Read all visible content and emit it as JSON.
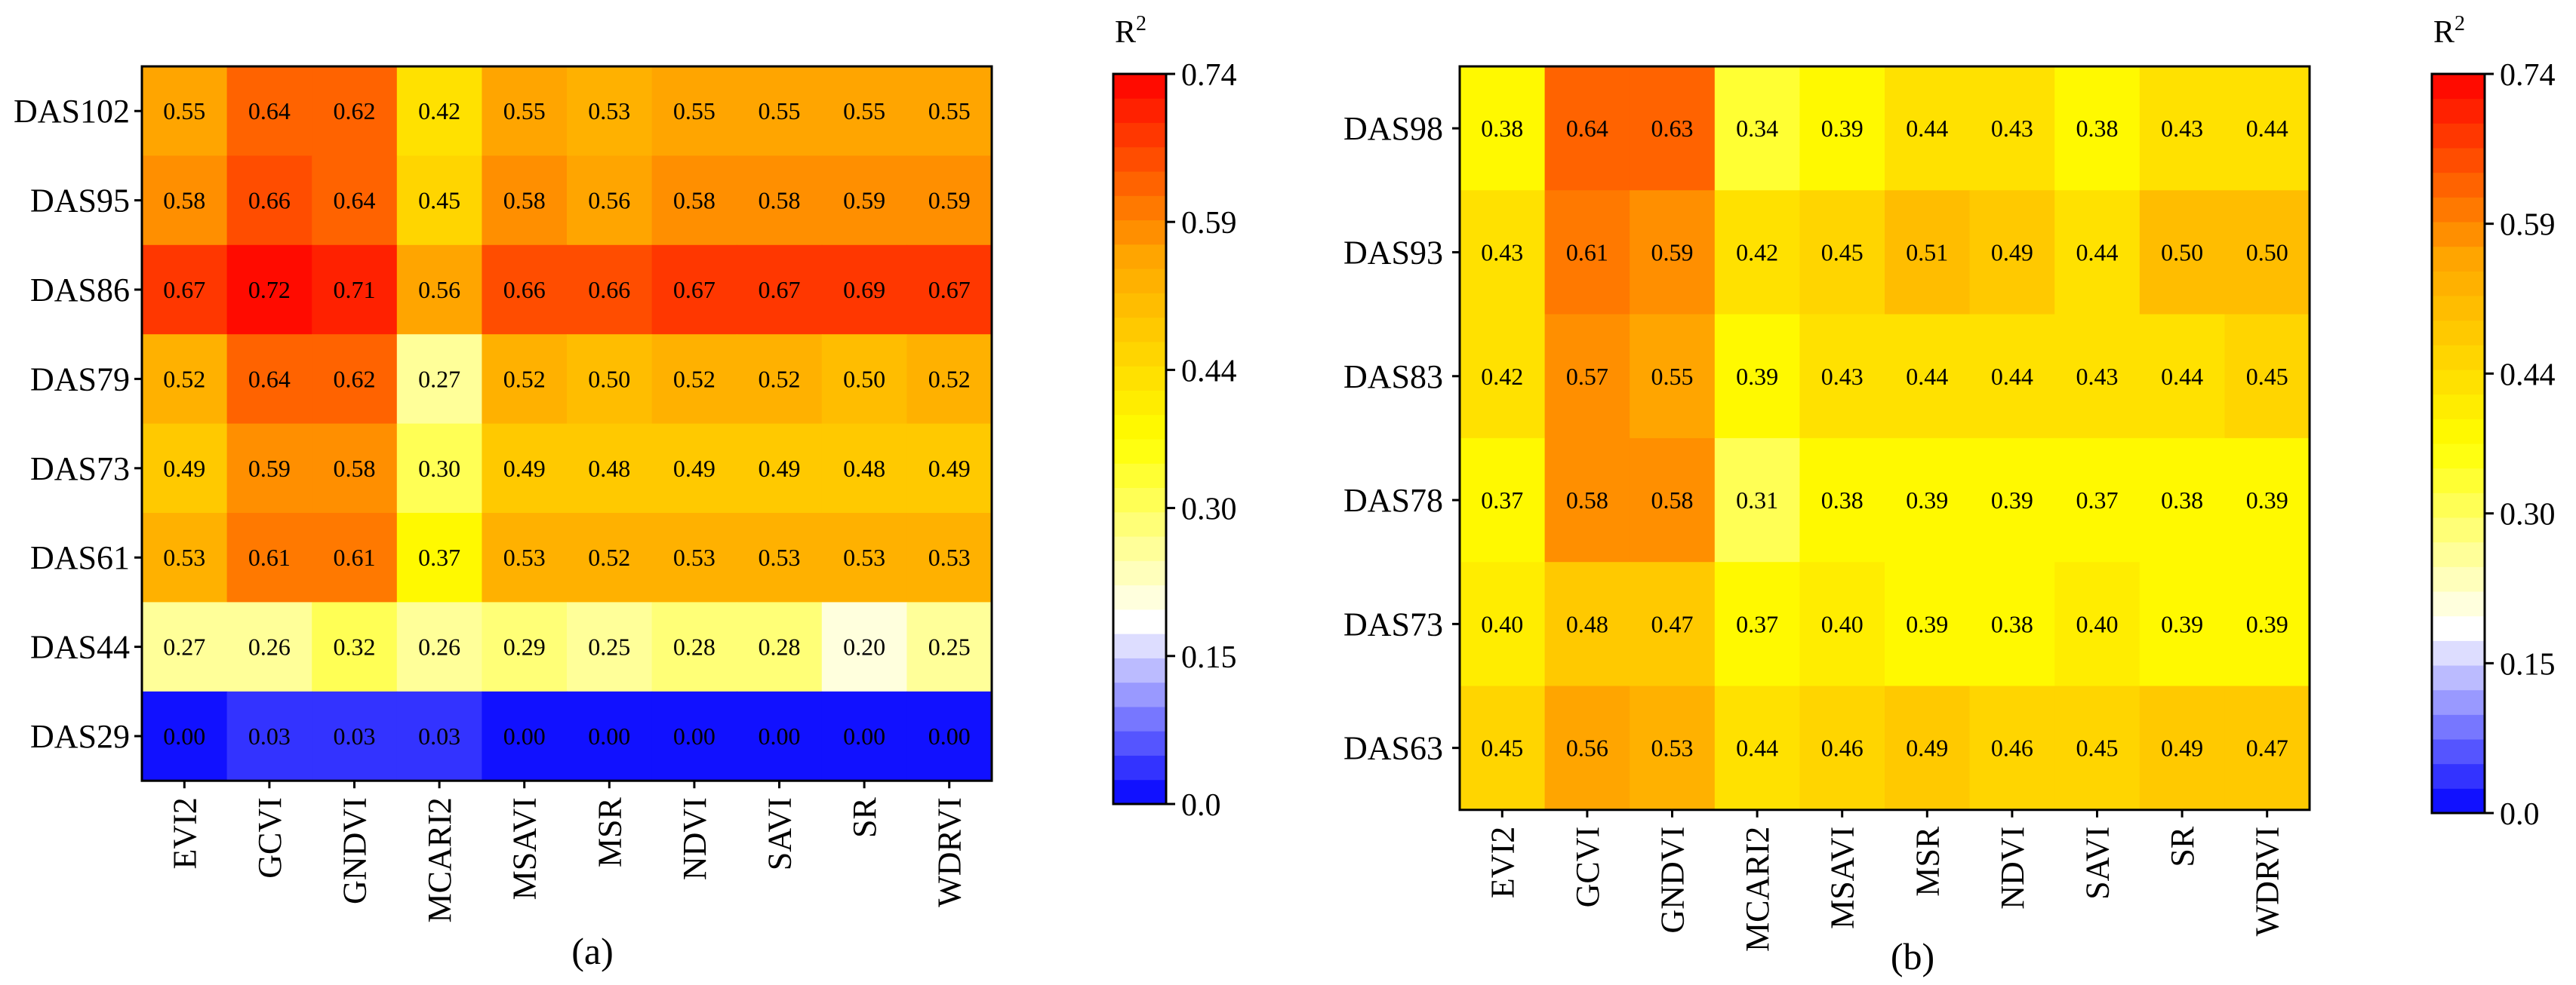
{
  "chart_data": [
    {
      "type": "heatmap",
      "caption": "(a)",
      "rows": [
        "DAS102",
        "DAS95",
        "DAS86",
        "DAS79",
        "DAS73",
        "DAS61",
        "DAS44",
        "DAS29"
      ],
      "columns": [
        "EVI2",
        "GCVI",
        "GNDVI",
        "MCARI2",
        "MSAVI",
        "MSR",
        "NDVI",
        "SAVI",
        "SR",
        "WDRVI"
      ],
      "values": [
        [
          0.55,
          0.64,
          0.62,
          0.42,
          0.55,
          0.53,
          0.55,
          0.55,
          0.55,
          0.55
        ],
        [
          0.58,
          0.66,
          0.64,
          0.45,
          0.58,
          0.56,
          0.58,
          0.58,
          0.59,
          0.59
        ],
        [
          0.67,
          0.72,
          0.71,
          0.56,
          0.66,
          0.66,
          0.67,
          0.67,
          0.69,
          0.67
        ],
        [
          0.52,
          0.64,
          0.62,
          0.27,
          0.52,
          0.5,
          0.52,
          0.52,
          0.5,
          0.52
        ],
        [
          0.49,
          0.59,
          0.58,
          0.3,
          0.49,
          0.48,
          0.49,
          0.49,
          0.48,
          0.49
        ],
        [
          0.53,
          0.61,
          0.61,
          0.37,
          0.53,
          0.52,
          0.53,
          0.53,
          0.53,
          0.53
        ],
        [
          0.27,
          0.26,
          0.32,
          0.26,
          0.29,
          0.25,
          0.28,
          0.28,
          0.2,
          0.25
        ],
        [
          0.0,
          0.03,
          0.03,
          0.03,
          0.0,
          0.0,
          0.0,
          0.0,
          0.0,
          0.0
        ]
      ],
      "colorbar": {
        "title": "R",
        "title_superscript": "2",
        "range": [
          0,
          0.74
        ],
        "ticks": [
          0,
          0.15,
          0.3,
          0.44,
          0.59,
          0.74
        ],
        "tick_labels": [
          "0.0",
          "0.15",
          "0.30",
          "0.44",
          "0.59",
          "0.74"
        ],
        "levels": 30,
        "colors": [
          "#0000ff",
          "#ffffff",
          "#ffff00",
          "#ffa500",
          "#ff0000"
        ]
      }
    },
    {
      "type": "heatmap",
      "caption": "(b)",
      "rows": [
        "DAS98",
        "DAS93",
        "DAS83",
        "DAS78",
        "DAS73",
        "DAS63"
      ],
      "columns": [
        "EVI2",
        "GCVI",
        "GNDVI",
        "MCARI2",
        "MSAVI",
        "MSR",
        "NDVI",
        "SAVI",
        "SR",
        "WDRVI"
      ],
      "values": [
        [
          0.38,
          0.64,
          0.63,
          0.34,
          0.39,
          0.44,
          0.43,
          0.38,
          0.43,
          0.44
        ],
        [
          0.43,
          0.61,
          0.59,
          0.42,
          0.45,
          0.51,
          0.49,
          0.44,
          0.5,
          0.5
        ],
        [
          0.42,
          0.57,
          0.55,
          0.39,
          0.43,
          0.44,
          0.44,
          0.43,
          0.44,
          0.45
        ],
        [
          0.37,
          0.58,
          0.58,
          0.31,
          0.38,
          0.39,
          0.39,
          0.37,
          0.38,
          0.39
        ],
        [
          0.4,
          0.48,
          0.47,
          0.37,
          0.4,
          0.39,
          0.38,
          0.4,
          0.39,
          0.39
        ],
        [
          0.45,
          0.56,
          0.53,
          0.44,
          0.46,
          0.49,
          0.46,
          0.45,
          0.49,
          0.47
        ]
      ],
      "colorbar": {
        "title": "R",
        "title_superscript": "2",
        "range": [
          0,
          0.74
        ],
        "ticks": [
          0,
          0.15,
          0.3,
          0.44,
          0.59,
          0.74
        ],
        "tick_labels": [
          "0.0",
          "0.15",
          "0.30",
          "0.44",
          "0.59",
          "0.74"
        ],
        "levels": 30,
        "colors": [
          "#0000ff",
          "#ffffff",
          "#ffff00",
          "#ffa500",
          "#ff0000"
        ]
      }
    }
  ]
}
